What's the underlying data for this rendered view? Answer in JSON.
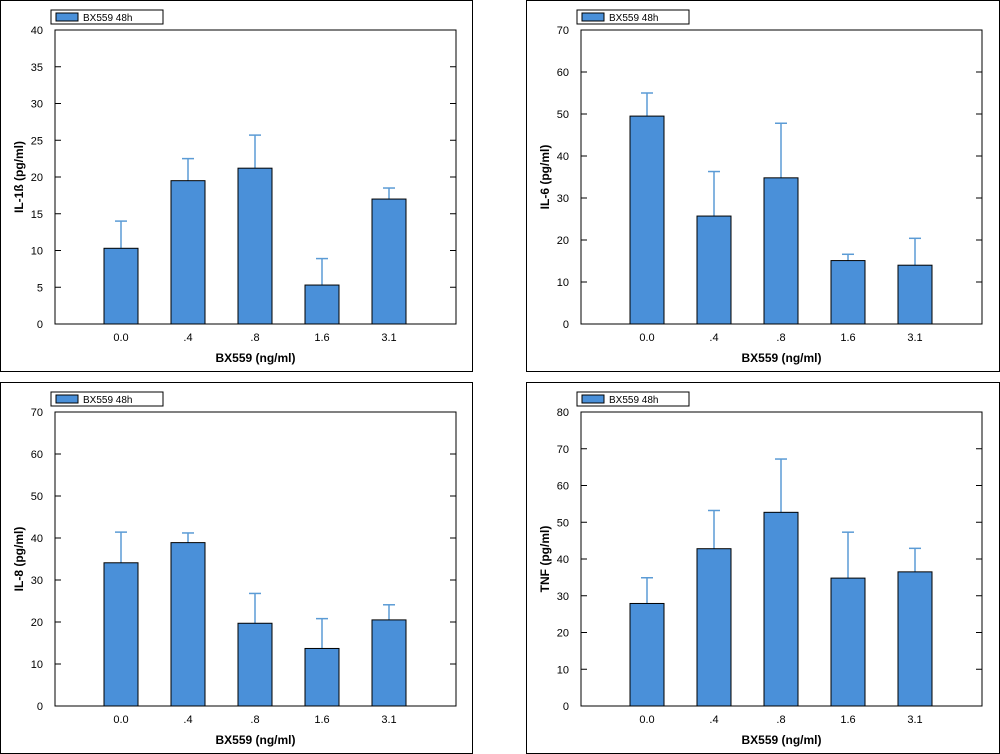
{
  "chart_data": [
    {
      "type": "bar",
      "legend": "BX559 48h",
      "legend_position": "top-left",
      "xlabel": "BX559 (ng/ml)",
      "ylabel": "IL-1ß (pg/ml)",
      "categories": [
        "0.0",
        ".4",
        ".8",
        "1.6",
        "3.1"
      ],
      "values": [
        10.3,
        19.5,
        21.2,
        5.3,
        17.0
      ],
      "error_upper": [
        14.0,
        22.5,
        25.7,
        8.9,
        18.5
      ],
      "ylim": [
        0,
        40
      ],
      "yticks": [
        0,
        5,
        10,
        15,
        20,
        25,
        30,
        35,
        40
      ],
      "grid": false,
      "bar_color": "#4a90d9"
    },
    {
      "type": "bar",
      "legend": "BX559 48h",
      "legend_position": "top-left",
      "xlabel": "BX559 (ng/ml)",
      "ylabel": "IL-6 (pg/ml)",
      "categories": [
        "0.0",
        ".4",
        ".8",
        "1.6",
        "3.1"
      ],
      "values": [
        49.5,
        25.7,
        34.8,
        15.1,
        14.0
      ],
      "error_upper": [
        55.0,
        36.3,
        47.8,
        16.6,
        20.4
      ],
      "ylim": [
        0,
        70
      ],
      "yticks": [
        0,
        10,
        20,
        30,
        40,
        50,
        60,
        70
      ],
      "grid": false,
      "bar_color": "#4a90d9"
    },
    {
      "type": "bar",
      "legend": "BX559 48h",
      "legend_position": "top-left",
      "xlabel": "BX559 (ng/ml)",
      "ylabel": "IL-8 (pg/ml)",
      "categories": [
        "0.0",
        ".4",
        ".8",
        "1.6",
        "3.1"
      ],
      "values": [
        34.1,
        38.9,
        19.7,
        13.7,
        20.5
      ],
      "error_upper": [
        41.4,
        41.2,
        26.8,
        20.8,
        24.1
      ],
      "ylim": [
        0,
        70
      ],
      "yticks": [
        0,
        10,
        20,
        30,
        40,
        50,
        60,
        70
      ],
      "grid": false,
      "bar_color": "#4a90d9"
    },
    {
      "type": "bar",
      "legend": "BX559 48h",
      "legend_position": "top-left",
      "xlabel": "BX559 (ng/ml)",
      "ylabel": "TNF (pg/ml)",
      "categories": [
        "0.0",
        ".4",
        ".8",
        "1.6",
        "3.1"
      ],
      "values": [
        27.9,
        42.8,
        52.7,
        34.8,
        36.5
      ],
      "error_upper": [
        34.9,
        53.2,
        67.2,
        47.3,
        42.9
      ],
      "ylim": [
        0,
        80
      ],
      "yticks": [
        0,
        10,
        20,
        30,
        40,
        50,
        60,
        70,
        80
      ],
      "grid": false,
      "bar_color": "#4a90d9"
    }
  ]
}
